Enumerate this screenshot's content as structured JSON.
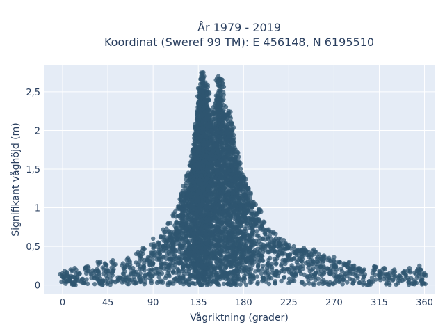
{
  "chart_data": {
    "type": "scatter",
    "title": "År 1979 - 2019",
    "subtitle": "Koordinat (Sweref 99 TM): E 456148, N 6195510",
    "xlabel": "Vågriktning (grader)",
    "ylabel": "Signifikant våghöjd (m)",
    "xlim": [
      -18,
      370
    ],
    "ylim": [
      -0.12,
      2.85
    ],
    "x_ticks": [
      0,
      45,
      90,
      135,
      180,
      225,
      270,
      315,
      360
    ],
    "x_tick_labels": [
      "0",
      "45",
      "90",
      "135",
      "180",
      "225",
      "270",
      "315",
      "360"
    ],
    "y_ticks": [
      0,
      0.5,
      1,
      1.5,
      2,
      2.5
    ],
    "y_tick_labels": [
      "0",
      "0,5",
      "1",
      "1,5",
      "2",
      "2,5"
    ],
    "grid": true,
    "background_color": "#e5ecf6",
    "marker_color": "#2f5570",
    "series": [
      {
        "points": [
          [
            0,
            0.15
          ],
          [
            2,
            0.18
          ],
          [
            5,
            0.12
          ],
          [
            8,
            0.2
          ],
          [
            10,
            0.02
          ],
          [
            12,
            0.22
          ],
          [
            15,
            0.16
          ],
          [
            20,
            0.08
          ],
          [
            25,
            0.24
          ],
          [
            30,
            0.19
          ],
          [
            35,
            0.3
          ],
          [
            38,
            0.05
          ],
          [
            42,
            0.28
          ],
          [
            45,
            0.18
          ],
          [
            50,
            0.32
          ],
          [
            55,
            0.1
          ],
          [
            60,
            0.28
          ],
          [
            65,
            0.35
          ],
          [
            70,
            0.22
          ],
          [
            75,
            0.42
          ],
          [
            80,
            0.48
          ],
          [
            85,
            0.36
          ],
          [
            90,
            0.6
          ],
          [
            95,
            0.55
          ],
          [
            100,
            0.72
          ],
          [
            105,
            0.8
          ],
          [
            108,
            0.68
          ],
          [
            112,
            0.95
          ],
          [
            115,
            1.02
          ],
          [
            118,
            1.15
          ],
          [
            120,
            1.28
          ],
          [
            122,
            1.2
          ],
          [
            125,
            1.45
          ],
          [
            127,
            1.38
          ],
          [
            128,
            1.6
          ],
          [
            130,
            1.75
          ],
          [
            131,
            1.9
          ],
          [
            132,
            2.05
          ],
          [
            133,
            1.95
          ],
          [
            134,
            2.2
          ],
          [
            135,
            2.35
          ],
          [
            136,
            2.45
          ],
          [
            137,
            2.6
          ],
          [
            138,
            2.7
          ],
          [
            139,
            2.55
          ],
          [
            140,
            2.75
          ],
          [
            141,
            2.5
          ],
          [
            142,
            2.62
          ],
          [
            143,
            2.4
          ],
          [
            144,
            2.3
          ],
          [
            145,
            2.5
          ],
          [
            146,
            2.2
          ],
          [
            148,
            2.1
          ],
          [
            150,
            2.3
          ],
          [
            152,
            2.15
          ],
          [
            154,
            2.45
          ],
          [
            155,
            2.7
          ],
          [
            156,
            2.58
          ],
          [
            158,
            2.66
          ],
          [
            160,
            2.4
          ],
          [
            162,
            2.2
          ],
          [
            164,
            2.02
          ],
          [
            165,
            2.25
          ],
          [
            167,
            1.98
          ],
          [
            168,
            2.1
          ],
          [
            170,
            1.85
          ],
          [
            172,
            1.75
          ],
          [
            174,
            1.72
          ],
          [
            175,
            1.6
          ],
          [
            178,
            1.45
          ],
          [
            180,
            1.4
          ],
          [
            182,
            1.3
          ],
          [
            185,
            1.25
          ],
          [
            188,
            1.08
          ],
          [
            190,
            1.05
          ],
          [
            195,
            0.98
          ],
          [
            200,
            0.82
          ],
          [
            205,
            0.72
          ],
          [
            210,
            0.68
          ],
          [
            215,
            0.6
          ],
          [
            220,
            0.58
          ],
          [
            225,
            0.52
          ],
          [
            230,
            0.5
          ],
          [
            235,
            0.45
          ],
          [
            240,
            0.48
          ],
          [
            245,
            0.42
          ],
          [
            250,
            0.46
          ],
          [
            255,
            0.4
          ],
          [
            260,
            0.38
          ],
          [
            265,
            0.35
          ],
          [
            270,
            0.36
          ],
          [
            275,
            0.3
          ],
          [
            280,
            0.28
          ],
          [
            285,
            0.3
          ],
          [
            290,
            0.25
          ],
          [
            295,
            0.22
          ],
          [
            300,
            0.2
          ],
          [
            305,
            0.05
          ],
          [
            310,
            0.24
          ],
          [
            315,
            0.18
          ],
          [
            320,
            0.22
          ],
          [
            325,
            0.15
          ],
          [
            330,
            0.2
          ],
          [
            335,
            0.12
          ],
          [
            340,
            0.18
          ],
          [
            345,
            0.22
          ],
          [
            350,
            0.16
          ],
          [
            355,
            0.25
          ],
          [
            358,
            0.1
          ],
          [
            360,
            0.15
          ]
        ]
      }
    ]
  }
}
